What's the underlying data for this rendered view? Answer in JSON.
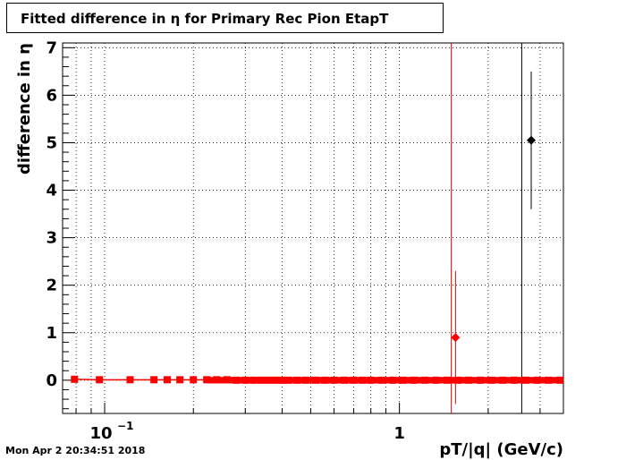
{
  "title": "Fitted difference in  η for Primary Rec Pion EtapT",
  "timestamp": "Mon Apr  2 20:34:51 2018",
  "chart_data": {
    "type": "scatter",
    "title": "Fitted difference in  η for Primary Rec Pion EtapT",
    "xlabel": "pT/|q| (GeV/c)",
    "ylabel": "difference in  η",
    "xscale": "log",
    "xlim": [
      0.072,
      3.6
    ],
    "ylim": [
      -0.7,
      7.1
    ],
    "yticks": [
      0,
      1,
      2,
      3,
      4,
      5,
      6,
      7
    ],
    "xtick_labels": [
      {
        "x": 0.1,
        "label": "10",
        "exponent": "−1"
      },
      {
        "x": 1,
        "label": "1",
        "exponent": ""
      }
    ],
    "grid": true,
    "colors": {
      "red": "#ff0000",
      "black": "#000000"
    },
    "vertical_lines": [
      {
        "x": 1.5,
        "color": "#cc0000"
      },
      {
        "x": 2.6,
        "color": "#000000"
      }
    ],
    "series": [
      {
        "color": "#ff0000",
        "marker": "square",
        "x": [
          0.079,
          0.096,
          0.122,
          0.147,
          0.163,
          0.18,
          0.2,
          0.222,
          0.24,
          0.26,
          0.28,
          0.3,
          0.32,
          0.34,
          0.36,
          0.38,
          0.4,
          0.42,
          0.45,
          0.48,
          0.52,
          0.56,
          0.6,
          0.65,
          0.7,
          0.75,
          0.8,
          0.87,
          0.95,
          1.03,
          1.12,
          1.22,
          1.33,
          1.45,
          1.58,
          1.72,
          1.88,
          2.05,
          2.24,
          2.45,
          2.68,
          2.93,
          3.2,
          3.5
        ],
        "y": [
          0.02,
          0.01,
          0.01,
          0.01,
          0.01,
          0.01,
          0.01,
          0.01,
          0.01,
          0.01,
          0.0,
          0.0,
          0.0,
          0.0,
          0.0,
          0.0,
          0.0,
          0.0,
          0.0,
          0.0,
          0.0,
          0.0,
          0.0,
          0.0,
          0.0,
          0.0,
          0.0,
          0.0,
          0.0,
          0.0,
          0.0,
          0.0,
          0.0,
          0.0,
          0.0,
          0.0,
          0.0,
          0.0,
          0.0,
          0.0,
          0.0,
          0.0,
          0.0,
          0.0
        ]
      },
      {
        "color": "#ff0000",
        "marker": "diamond",
        "x": [
          1.55
        ],
        "y": [
          0.9
        ],
        "yerr_low": [
          1.4
        ],
        "yerr_high": [
          1.4
        ]
      },
      {
        "color": "#000000",
        "marker": "diamond",
        "x": [
          2.8
        ],
        "y": [
          5.05
        ],
        "yerr_low": [
          1.45
        ],
        "yerr_high": [
          1.45
        ]
      }
    ]
  }
}
